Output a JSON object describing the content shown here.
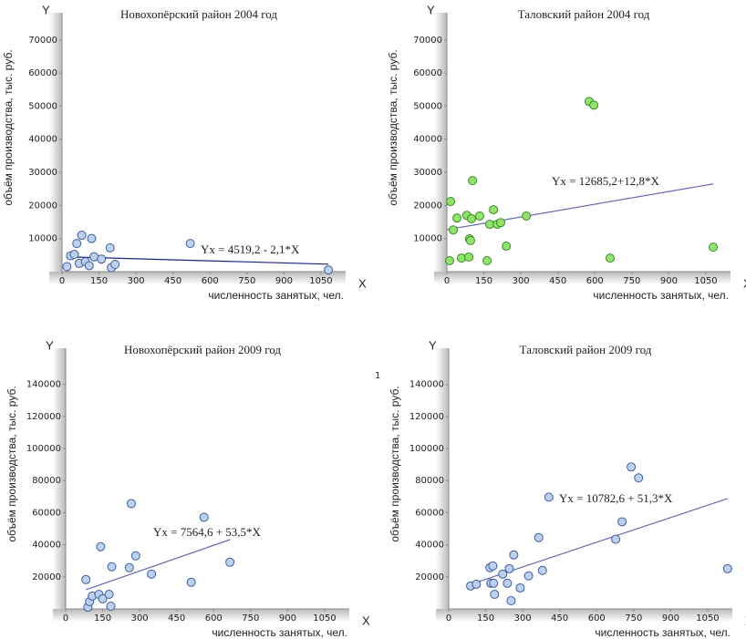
{
  "chart_data": [
    {
      "type": "scatter",
      "title": "Новохопёрский район 2004 год",
      "x_label": "численность занятых, чел.",
      "y_label": "объём производства, тыс. руб.",
      "x_axis_letter": "X",
      "y_axis_letter": "Y",
      "x": [
        20,
        35,
        50,
        60,
        80,
        70,
        95,
        120,
        110,
        130,
        160,
        195,
        200,
        215,
        520,
        1080
      ],
      "values": [
        1500,
        4800,
        5200,
        8500,
        11000,
        2500,
        3000,
        10000,
        1800,
        4500,
        3800,
        7200,
        1200,
        2200,
        8500,
        500
      ],
      "color": "#bcd0f0",
      "edge_color": "#3d5c9c",
      "trend": {
        "intercept": 4519.2,
        "slope": -2.1,
        "x": [
          20,
          1080
        ],
        "color": "#1a2380",
        "label": "Yx = 4519,2 - 2,1*X"
      },
      "xlim": [
        0,
        1150
      ],
      "ylim": [
        0,
        76000
      ],
      "xticks": [
        0,
        150,
        300,
        450,
        600,
        750,
        900,
        1050
      ],
      "yticks": [
        10000,
        20000,
        30000,
        40000,
        50000,
        60000,
        70000
      ]
    },
    {
      "type": "scatter",
      "title": "Таловский район 2004 год",
      "x_label": "численность занятых, чел.",
      "y_label": "объём производства, тыс. руб.",
      "x_axis_letter": "X",
      "y_axis_letter": "Y",
      "x": [
        11,
        15,
        26,
        41,
        59,
        81,
        89,
        92,
        96,
        100,
        104,
        133,
        163,
        174,
        189,
        204,
        218,
        241,
        322,
        577,
        596,
        662,
        1080
      ],
      "values": [
        3300,
        21200,
        12600,
        16200,
        4100,
        17000,
        4400,
        9900,
        9400,
        16000,
        27500,
        16800,
        3300,
        14300,
        18700,
        14300,
        14800,
        7700,
        16800,
        51400,
        50300,
        4100,
        7400
      ],
      "color": "#90e36c",
      "edge_color": "#3b8a22",
      "trend": {
        "intercept": 12685.2,
        "slope": 12.8,
        "x": [
          0,
          1080
        ],
        "color": "#6a6ab4",
        "label": "Yx = 12685,2+12,8*X"
      },
      "xlim": [
        0,
        1150
      ],
      "ylim": [
        0,
        76000
      ],
      "xticks": [
        0,
        150,
        300,
        450,
        600,
        750,
        900,
        1050
      ],
      "yticks": [
        10000,
        20000,
        30000,
        40000,
        50000,
        60000,
        70000
      ]
    },
    {
      "type": "scatter",
      "title": "Новохопёрский район 2009 год",
      "x_label": "численность занятых, чел.",
      "y_label": "объём производства, тыс. руб.",
      "x_axis_letter": "X",
      "y_axis_letter": "Y",
      "x": [
        82,
        90,
        97,
        108,
        135,
        150,
        142,
        176,
        183,
        187,
        258,
        266,
        284,
        348,
        509,
        561,
        666
      ],
      "values": [
        18300,
        1100,
        4600,
        8000,
        9100,
        6300,
        38800,
        9100,
        1700,
        26300,
        25700,
        65700,
        33100,
        21700,
        16600,
        57100,
        29100
      ],
      "color": "#bcd0f0",
      "edge_color": "#3d5c9c",
      "trend": {
        "intercept": 7564.6,
        "slope": 53.5,
        "x": [
          82,
          666
        ],
        "color": "#6a6ab4",
        "label": "Yx = 7564,6 + 53,5*X"
      },
      "xlim": [
        0,
        1150
      ],
      "ylim": [
        0,
        158000
      ],
      "xticks": [
        0,
        150,
        300,
        450,
        600,
        750,
        900,
        1050
      ],
      "yticks": [
        20000,
        40000,
        60000,
        80000,
        100000,
        120000,
        140000
      ]
    },
    {
      "type": "scatter",
      "title": "Таловский район 2009 год",
      "x_label": "численность занятых, чел.",
      "y_label": "объём производства, тыс. руб.",
      "x_axis_letter": "X",
      "y_axis_letter": "Y",
      "note": "1",
      "x": [
        89,
        112,
        167,
        179,
        171,
        182,
        186,
        219,
        238,
        246,
        253,
        264,
        290,
        324,
        365,
        380,
        406,
        677,
        703,
        740,
        770,
        1131
      ],
      "values": [
        14300,
        15400,
        25700,
        26800,
        16000,
        16000,
        9100,
        21700,
        16000,
        25100,
        5100,
        33700,
        13100,
        20600,
        44500,
        24000,
        69700,
        43400,
        54300,
        88500,
        81700,
        25100
      ],
      "color": "#bcd0f0",
      "edge_color": "#3d5c9c",
      "trend": {
        "intercept": 10782.6,
        "slope": 51.3,
        "x": [
          89,
          1131
        ],
        "color": "#6a6ab4",
        "label": "Yx = 10782,6 + 51,3*X"
      },
      "xlim": [
        0,
        1150
      ],
      "ylim": [
        0,
        158000
      ],
      "xticks": [
        0,
        150,
        300,
        450,
        600,
        750,
        900,
        1050
      ],
      "yticks": [
        20000,
        40000,
        60000,
        80000,
        100000,
        120000,
        140000
      ]
    }
  ]
}
